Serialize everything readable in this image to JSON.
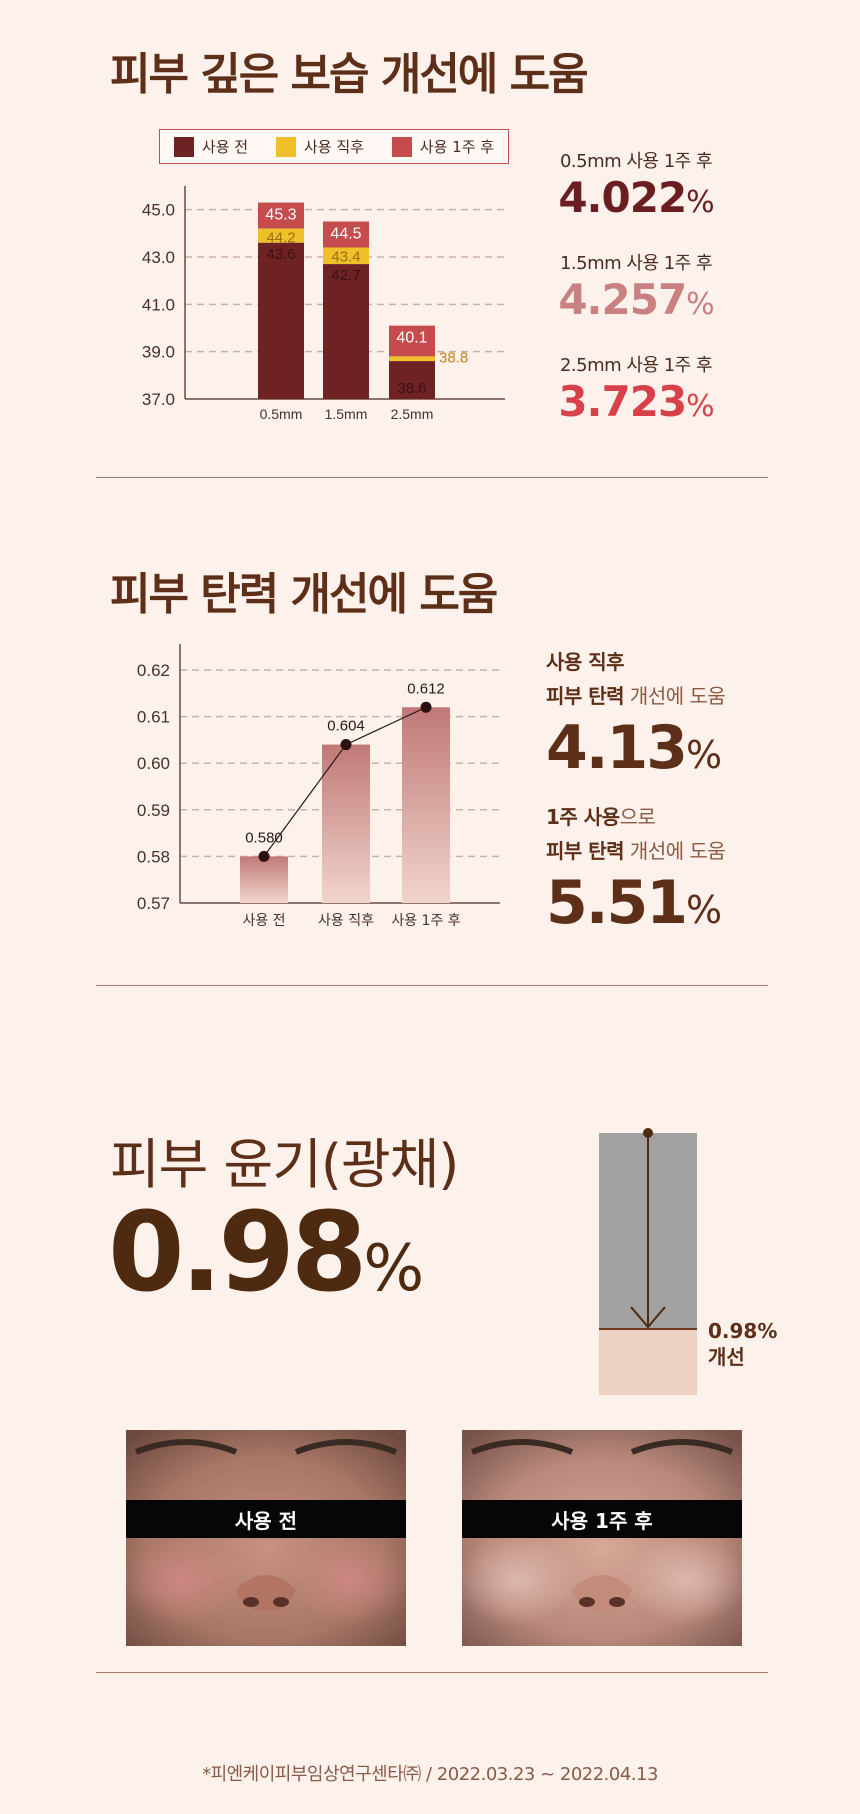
{
  "section_moisture": {
    "title": "피부 깊은 보습 개선에 도움",
    "legend": [
      {
        "label": "사용 전",
        "color": "#6f2224"
      },
      {
        "label": "사용 직후",
        "color": "#f0c02a"
      },
      {
        "label": "사용 1주 후",
        "color": "#c54b4c"
      }
    ],
    "stats": [
      {
        "caption": "0.5mm 사용 1주 후",
        "value": "4.022",
        "unit": "%",
        "color": "#6a1e22"
      },
      {
        "caption": "1.5mm 사용 1주 후",
        "value": "4.257",
        "unit": "%",
        "color": "#c98080"
      },
      {
        "caption": "2.5mm 사용 1주 후",
        "value": "3.723",
        "unit": "%",
        "color": "#d9414a"
      }
    ]
  },
  "section_elasticity": {
    "title": "피부 탄력 개선에 도움",
    "stat1": {
      "line1": "사용 직후",
      "line2_bold": "피부 탄력",
      "line2_light": " 개선에 도움",
      "value": "4.13",
      "unit": "%"
    },
    "stat2": {
      "line1_bold": "1주 사용",
      "line1_light": "으로",
      "line2_bold": "피부 탄력",
      "line2_light": " 개선에 도움",
      "value": "5.51",
      "unit": "%"
    }
  },
  "section_gloss": {
    "title": "피부 윤기(광채)",
    "value": "0.98",
    "unit": "%",
    "bar_label_value": "0.98%",
    "bar_label_text": "개선",
    "photo_before_label": "사용 전",
    "photo_after_label": "사용 1주 후"
  },
  "footnote": "*피엔케이피부임상연구센타㈜ / 2022.03.23 ~ 2022.04.13",
  "chart_data": [
    {
      "type": "bar",
      "categories": [
        "0.5mm",
        "1.5mm",
        "2.5mm"
      ],
      "series": [
        {
          "name": "사용 전",
          "values": [
            43.6,
            42.7,
            38.6
          ],
          "color": "#6f2224"
        },
        {
          "name": "사용 직후",
          "values": [
            44.2,
            43.4,
            38.8
          ],
          "color": "#f0c02a"
        },
        {
          "name": "사용 1주 후",
          "values": [
            45.3,
            44.5,
            40.1
          ],
          "color": "#c54b4c"
        }
      ],
      "yticks": [
        "45.0",
        "43.0",
        "41.0",
        "39.0",
        "37.0"
      ],
      "ylim": [
        37,
        46
      ],
      "grid": true,
      "legend": "top"
    },
    {
      "type": "bar",
      "categories": [
        "사용 전",
        "사용 직후",
        "사용 1주 후"
      ],
      "values": [
        0.58,
        0.604,
        0.612
      ],
      "value_labels": [
        "0.580",
        "0.604",
        "0.612"
      ],
      "yticks": [
        "0.62",
        "0.61",
        "0.60",
        "0.59",
        "0.58",
        "0.57"
      ],
      "ylim": [
        0.57,
        0.625
      ],
      "grid": true,
      "overlay_line": true
    },
    {
      "type": "bar",
      "categories": [
        "피부 윤기"
      ],
      "values": [
        0.98
      ],
      "unit": "%"
    }
  ]
}
